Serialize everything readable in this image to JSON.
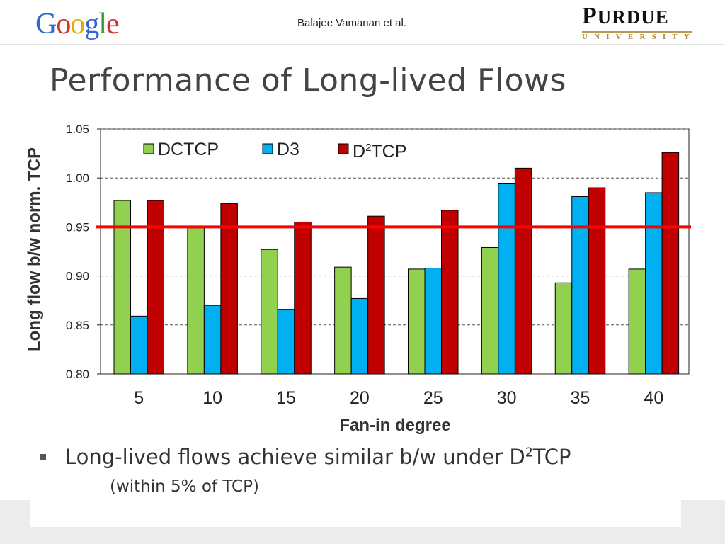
{
  "header": {
    "logo_letters": [
      {
        "ch": "G",
        "color": "#3366cc"
      },
      {
        "ch": "o",
        "color": "#cc3333"
      },
      {
        "ch": "o",
        "color": "#e6a800"
      },
      {
        "ch": "g",
        "color": "#3366cc"
      },
      {
        "ch": "l",
        "color": "#339933"
      },
      {
        "ch": "e",
        "color": "#cc3333"
      }
    ],
    "author": "Balajee Vamanan et al.",
    "university_name": "PURDUE",
    "university_sub": "UNIVERSITY"
  },
  "title": "Performance of Long-lived Flows",
  "bullet": {
    "text_pre": "Long-lived flows achieve similar b/w under D",
    "text_sup": "2",
    "text_post": "TCP",
    "subtext": "(within 5% of TCP)"
  },
  "chart_data": {
    "type": "bar",
    "categories": [
      "5",
      "10",
      "15",
      "20",
      "25",
      "30",
      "35",
      "40"
    ],
    "series": [
      {
        "name": "DCTCP",
        "color": "#92d050",
        "values": [
          0.977,
          0.949,
          0.927,
          0.909,
          0.907,
          0.929,
          0.893,
          0.907
        ]
      },
      {
        "name": "D3",
        "color": "#00b0f0",
        "values": [
          0.859,
          0.87,
          0.866,
          0.877,
          0.908,
          0.994,
          0.981,
          0.985
        ]
      },
      {
        "name_pre": "D",
        "name_sup": "2",
        "name_post": "TCP",
        "color": "#c00000",
        "values": [
          0.977,
          0.974,
          0.955,
          0.961,
          0.967,
          1.01,
          0.99,
          1.026
        ]
      }
    ],
    "reference_line": {
      "value": 0.95,
      "color": "#ff0000"
    },
    "yticks": [
      "0.80",
      "0.85",
      "0.90",
      "0.95",
      "1.00",
      "1.05"
    ],
    "ylim": [
      0.8,
      1.05
    ],
    "xlabel": "Fan-in degree",
    "ylabel": "Long flow b/w norm. TCP",
    "grid": true,
    "legend": "top"
  }
}
